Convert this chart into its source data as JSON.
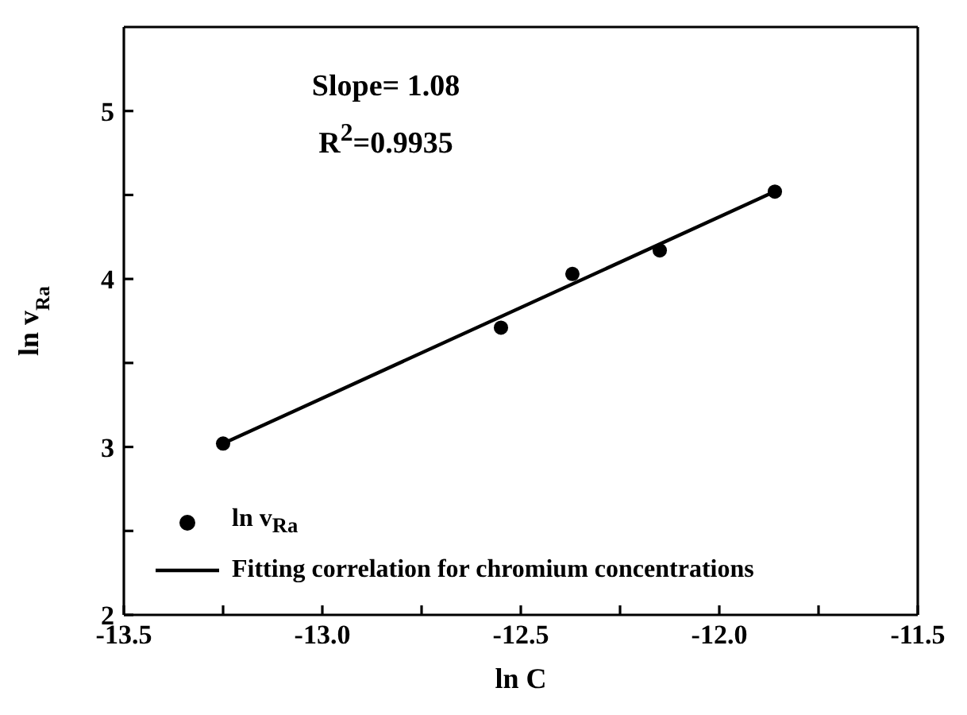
{
  "chart_data": {
    "type": "scatter",
    "xlabel": "ln C",
    "ylabel": "ln v$_{Ra}$",
    "xlim": [
      -13.5,
      -11.5
    ],
    "xticks": [
      {
        "value": -13.5,
        "label": "-13.5"
      },
      {
        "value": -13.25,
        "label": null
      },
      {
        "value": -13.0,
        "label": "-13.0"
      },
      {
        "value": -12.75,
        "label": null
      },
      {
        "value": -12.5,
        "label": "-12.5"
      },
      {
        "value": -12.25,
        "label": null
      },
      {
        "value": -12.0,
        "label": "-12.0"
      },
      {
        "value": -11.75,
        "label": null
      },
      {
        "value": -11.5,
        "label": "-11.5"
      }
    ],
    "ylim": [
      2,
      5.5
    ],
    "yticks": [
      2,
      {
        "value": 2.5,
        "label": null
      },
      3,
      {
        "value": 3.5,
        "label": null
      },
      4,
      {
        "value": 4.5,
        "label": null
      },
      5
    ],
    "annotations": [
      "Slope= 1.08",
      "R$^{2}$=0.9935"
    ],
    "legend": "bottom left",
    "series": [
      {
        "name": "ln v$_{Ra}$",
        "marker": "circle",
        "color": "#000000",
        "x": [
          -13.25,
          -12.55,
          -12.37,
          -12.15,
          -11.86
        ],
        "values": [
          3.02,
          3.71,
          4.03,
          4.17,
          4.52
        ]
      },
      {
        "name": "Fitting correlation for chromium concentrations",
        "type": "line",
        "marker": "none",
        "line_style": "solid",
        "color": "#000000",
        "x": [
          -13.25,
          -11.87
        ],
        "values": [
          3.02,
          4.51
        ]
      }
    ]
  }
}
